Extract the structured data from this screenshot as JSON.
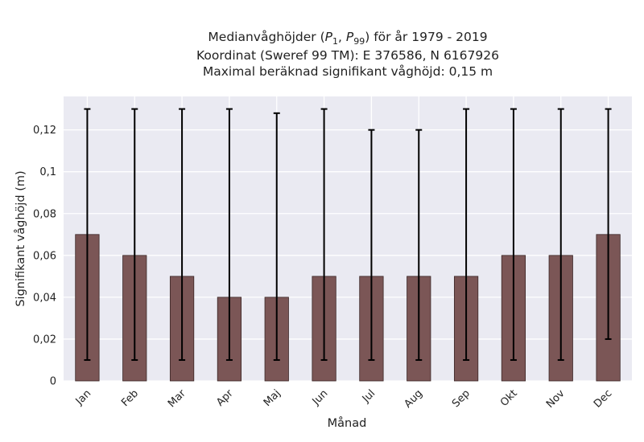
{
  "chart_data": {
    "type": "bar",
    "title": {
      "line1_prefix": "Medianvåghöjder (",
      "line1_p1_main": "P",
      "line1_p1_sub": "1",
      "line1_sep": ", ",
      "line1_p99_main": "P",
      "line1_p99_sub": "99",
      "line1_suffix": ") för år 1979 - 2019",
      "line2": "Koordinat (Sweref 99 TM): E 376586, N 6167926",
      "line3": "Maximal beräknad signifikant våghöjd: 0,15 m"
    },
    "xlabel": "Månad",
    "ylabel": "Signifikant våghöjd (m)",
    "categories": [
      "Jan",
      "Feb",
      "Mar",
      "Apr",
      "Maj",
      "Jun",
      "Jul",
      "Aug",
      "Sep",
      "Okt",
      "Nov",
      "Dec"
    ],
    "values": [
      0.07,
      0.06,
      0.05,
      0.04,
      0.04,
      0.05,
      0.05,
      0.05,
      0.05,
      0.06,
      0.06,
      0.07
    ],
    "err_low": [
      0.01,
      0.01,
      0.01,
      0.01,
      0.01,
      0.01,
      0.01,
      0.01,
      0.01,
      0.01,
      0.01,
      0.02
    ],
    "err_high": [
      0.13,
      0.13,
      0.13,
      0.13,
      0.128,
      0.13,
      0.12,
      0.12,
      0.13,
      0.13,
      0.13,
      0.13
    ],
    "ylim": [
      0,
      0.136
    ],
    "yticks": [
      0,
      0.02,
      0.04,
      0.06,
      0.08,
      0.1,
      0.12
    ],
    "ytick_labels": [
      "0",
      "0,02",
      "0,04",
      "0,06",
      "0,08",
      "0,1",
      "0,12"
    ],
    "grid": true,
    "colors": {
      "bar": "#7b5656",
      "bar_edge": "#3a2626",
      "plot_bg": "#eaeaf2",
      "grid": "#ffffff",
      "errorbar": "#000000"
    }
  }
}
